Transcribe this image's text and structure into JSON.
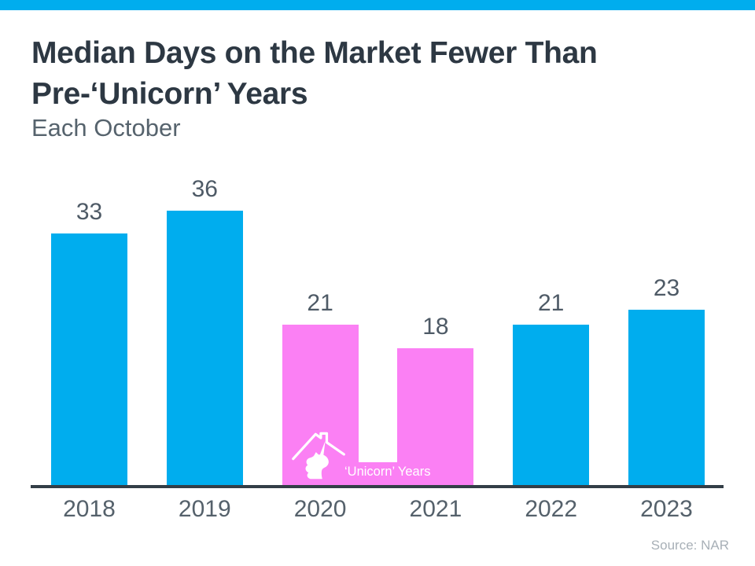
{
  "header": {
    "title_line1": "Median Days on the Market Fewer Than",
    "title_line2": "Pre-‘Unicorn’ Years",
    "subtitle": "Each October"
  },
  "chart_data": {
    "type": "bar",
    "title": "Median Days on the Market Fewer Than Pre-‘Unicorn’ Years",
    "subtitle": "Each October",
    "categories": [
      "2018",
      "2019",
      "2020",
      "2021",
      "2022",
      "2023"
    ],
    "values": [
      33,
      36,
      21,
      18,
      21,
      23
    ],
    "unit": "days",
    "xlabel": "",
    "ylabel": "",
    "ylim": [
      0,
      36
    ],
    "grid": false,
    "legend": "none",
    "value_labels": true,
    "bar_color": "#00ADEE",
    "highlight": {
      "categories": [
        "2020",
        "2021"
      ],
      "color": "#FB80F4",
      "label": "‘Unicorn’ Years",
      "icon": "unicorn-house-icon"
    }
  },
  "footer": {
    "source": "Source: NAR"
  },
  "colors": {
    "accent_bar": "#00ADEE",
    "title_text": "#2D3843",
    "subtitle_text": "#56636D",
    "label_text": "#4E5A66",
    "axis_line": "#333E47",
    "source_text": "#A8B0B7",
    "background": "#FFFFFF"
  }
}
